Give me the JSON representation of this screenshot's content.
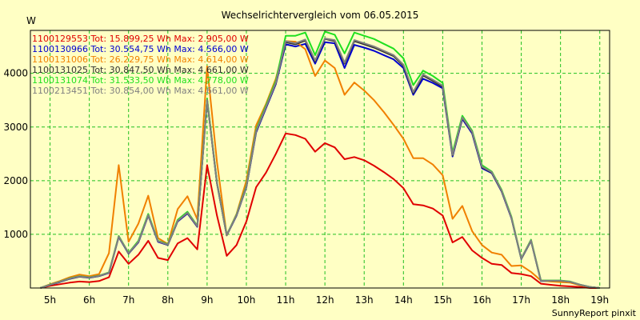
{
  "chart_data": {
    "type": "line",
    "title": "Wechselrichtervergleich vom 06.05.2015",
    "ylabel": "W",
    "xlabel": "",
    "credit": "SunnyReport pinxit",
    "x_ticks": [
      "5h",
      "6h",
      "7h",
      "8h",
      "9h",
      "10h",
      "11h",
      "12h",
      "13h",
      "14h",
      "15h",
      "16h",
      "17h",
      "18h",
      "19h"
    ],
    "y_ticks": [
      1000,
      2000,
      3000,
      4000
    ],
    "xlim": [
      4.5,
      19.25
    ],
    "ylim": [
      0,
      4800
    ],
    "grid": true,
    "series": [
      {
        "name": "1100129553",
        "legend": "1100129553 Tot: 15.899,25 Wh Max: 2.905,00 W",
        "color": "#e00000",
        "x": [
          4.75,
          5,
          5.25,
          5.5,
          5.75,
          6,
          6.25,
          6.5,
          6.75,
          7,
          7.25,
          7.5,
          7.75,
          8,
          8.25,
          8.5,
          8.75,
          9,
          9.25,
          9.5,
          9.75,
          10,
          10.25,
          10.5,
          10.75,
          11,
          11.25,
          11.5,
          11.75,
          12,
          12.25,
          12.5,
          12.75,
          13,
          13.25,
          13.5,
          13.75,
          14,
          14.25,
          14.5,
          14.75,
          15,
          15.25,
          15.5,
          15.75,
          16,
          16.25,
          16.5,
          16.75,
          17,
          17.25,
          17.5,
          17.75,
          18,
          18.25,
          18.5,
          18.75,
          19
        ],
        "y": [
          0,
          40,
          70,
          100,
          120,
          110,
          130,
          200,
          680,
          450,
          620,
          880,
          560,
          520,
          830,
          930,
          720,
          2290,
          1350,
          600,
          800,
          1240,
          1880,
          2150,
          2500,
          2880,
          2850,
          2780,
          2540,
          2700,
          2620,
          2400,
          2440,
          2380,
          2280,
          2160,
          2030,
          1860,
          1560,
          1540,
          1480,
          1350,
          850,
          950,
          700,
          560,
          450,
          430,
          280,
          260,
          220,
          80,
          60,
          40,
          30,
          20,
          0,
          0
        ]
      },
      {
        "name": "1100130966",
        "legend": "1100130966 Tot: 30.554,75 Wh Max: 4.566,00 W",
        "color": "#0000d0",
        "x": [
          4.75,
          5,
          5.25,
          5.5,
          5.75,
          6,
          6.25,
          6.5,
          6.75,
          7,
          7.25,
          7.5,
          7.75,
          8,
          8.25,
          8.5,
          8.75,
          9,
          9.25,
          9.5,
          9.75,
          10,
          10.25,
          10.5,
          10.75,
          11,
          11.25,
          11.5,
          11.75,
          12,
          12.25,
          12.5,
          12.75,
          13,
          13.25,
          13.5,
          13.75,
          14,
          14.25,
          14.5,
          14.75,
          15,
          15.25,
          15.5,
          15.75,
          16,
          16.25,
          16.5,
          16.75,
          17,
          17.25,
          17.5,
          17.75,
          18,
          18.25,
          18.5,
          18.75,
          19
        ],
        "y": [
          0,
          60,
          110,
          170,
          210,
          190,
          220,
          280,
          950,
          640,
          850,
          1350,
          860,
          800,
          1240,
          1390,
          1140,
          3500,
          1950,
          980,
          1350,
          1880,
          2900,
          3350,
          3800,
          4540,
          4500,
          4550,
          4180,
          4580,
          4560,
          4100,
          4530,
          4480,
          4420,
          4340,
          4260,
          4100,
          3600,
          3900,
          3820,
          3720,
          2450,
          3150,
          2880,
          2230,
          2140,
          1800,
          1300,
          540,
          880,
          130,
          130,
          130,
          110,
          60,
          20,
          0
        ]
      },
      {
        "name": "1100131006",
        "legend": "1100131006 Tot: 26.229,75 Wh Max: 4.614,00 W",
        "color": "#f08000",
        "x": [
          4.75,
          5,
          5.25,
          5.5,
          5.75,
          6,
          6.25,
          6.5,
          6.75,
          7,
          7.25,
          7.5,
          7.75,
          8,
          8.25,
          8.5,
          8.75,
          9,
          9.25,
          9.5,
          9.75,
          10,
          10.25,
          10.5,
          10.75,
          11,
          11.25,
          11.5,
          11.75,
          12,
          12.25,
          12.5,
          12.75,
          13,
          13.25,
          13.5,
          13.75,
          14,
          14.25,
          14.5,
          14.75,
          15,
          15.25,
          15.5,
          15.75,
          16,
          16.25,
          16.5,
          16.75,
          17,
          17.25,
          17.5,
          17.75,
          18,
          18.25,
          18.5,
          18.75,
          19
        ],
        "y": [
          0,
          70,
          130,
          200,
          250,
          220,
          260,
          650,
          2290,
          860,
          1200,
          1720,
          930,
          820,
          1470,
          1710,
          1280,
          4130,
          2350,
          980,
          1380,
          2000,
          3030,
          3430,
          3900,
          4600,
          4590,
          4450,
          3950,
          4240,
          4100,
          3600,
          3830,
          3680,
          3500,
          3280,
          3040,
          2780,
          2420,
          2420,
          2300,
          2100,
          1290,
          1530,
          1060,
          800,
          660,
          620,
          410,
          420,
          300,
          140,
          120,
          110,
          100,
          50,
          20,
          0
        ]
      },
      {
        "name": "1100131025",
        "legend": "1100131025 Tot: 30.847,50 Wh Max: 4.661,00 W",
        "color": "#303030",
        "x": [
          4.75,
          5,
          5.25,
          5.5,
          5.75,
          6,
          6.25,
          6.5,
          6.75,
          7,
          7.25,
          7.5,
          7.75,
          8,
          8.25,
          8.5,
          8.75,
          9,
          9.25,
          9.5,
          9.75,
          10,
          10.25,
          10.5,
          10.75,
          11,
          11.25,
          11.5,
          11.75,
          12,
          12.25,
          12.5,
          12.75,
          13,
          13.25,
          13.5,
          13.75,
          14,
          14.25,
          14.5,
          14.75,
          15,
          15.25,
          15.5,
          15.75,
          16,
          16.25,
          16.5,
          16.75,
          17,
          17.25,
          17.5,
          17.75,
          18,
          18.25,
          18.5,
          18.75,
          19
        ],
        "y": [
          0,
          60,
          115,
          175,
          215,
          195,
          225,
          285,
          960,
          645,
          860,
          1360,
          870,
          805,
          1250,
          1400,
          1150,
          3510,
          1960,
          985,
          1360,
          1890,
          2920,
          3370,
          3820,
          4580,
          4540,
          4610,
          4220,
          4640,
          4600,
          4180,
          4600,
          4540,
          4480,
          4400,
          4320,
          4140,
          3630,
          3960,
          3860,
          3750,
          2470,
          3170,
          2900,
          2250,
          2150,
          1810,
          1310,
          545,
          885,
          135,
          135,
          135,
          115,
          60,
          20,
          0
        ]
      },
      {
        "name": "1100131074",
        "legend": "1100131074 Tot: 31.533,50 Wh Max: 4.778,00 W",
        "color": "#20e020",
        "x": [
          4.75,
          5,
          5.25,
          5.5,
          5.75,
          6,
          6.25,
          6.5,
          6.75,
          7,
          7.25,
          7.5,
          7.75,
          8,
          8.25,
          8.5,
          8.75,
          9,
          9.25,
          9.5,
          9.75,
          10,
          10.25,
          10.5,
          10.75,
          11,
          11.25,
          11.5,
          11.75,
          12,
          12.25,
          12.5,
          12.75,
          13,
          13.25,
          13.5,
          13.75,
          14,
          14.25,
          14.5,
          14.75,
          15,
          15.25,
          15.5,
          15.75,
          16,
          16.25,
          16.5,
          16.75,
          17,
          17.25,
          17.5,
          17.75,
          18,
          18.25,
          18.5,
          18.75,
          19
        ],
        "y": [
          0,
          62,
          118,
          180,
          220,
          200,
          230,
          290,
          970,
          655,
          880,
          1380,
          880,
          815,
          1270,
          1420,
          1160,
          3530,
          1970,
          990,
          1370,
          1910,
          2950,
          3400,
          3860,
          4700,
          4700,
          4760,
          4340,
          4778,
          4720,
          4370,
          4760,
          4700,
          4640,
          4550,
          4460,
          4280,
          3780,
          4050,
          3950,
          3820,
          2520,
          3210,
          2930,
          2290,
          2170,
          1830,
          1330,
          550,
          900,
          140,
          140,
          140,
          120,
          60,
          20,
          0
        ]
      },
      {
        "name": "1100213451",
        "legend": "1100213451 Tot: 30.854,00 Wh Max: 4.661,00 W",
        "color": "#808080",
        "x": [
          4.75,
          5,
          5.25,
          5.5,
          5.75,
          6,
          6.25,
          6.5,
          6.75,
          7,
          7.25,
          7.5,
          7.75,
          8,
          8.25,
          8.5,
          8.75,
          9,
          9.25,
          9.5,
          9.75,
          10,
          10.25,
          10.5,
          10.75,
          11,
          11.25,
          11.5,
          11.75,
          12,
          12.25,
          12.5,
          12.75,
          13,
          13.25,
          13.5,
          13.75,
          14,
          14.25,
          14.5,
          14.75,
          15,
          15.25,
          15.5,
          15.75,
          16,
          16.25,
          16.5,
          16.75,
          17,
          17.25,
          17.5,
          17.75,
          18,
          18.25,
          18.5,
          18.75,
          19
        ],
        "y": [
          0,
          61,
          116,
          176,
          216,
          196,
          226,
          286,
          962,
          648,
          862,
          1362,
          872,
          808,
          1252,
          1402,
          1152,
          3505,
          1962,
          987,
          1362,
          1892,
          2925,
          3375,
          3825,
          4600,
          4560,
          4630,
          4240,
          4650,
          4620,
          4200,
          4620,
          4560,
          4500,
          4420,
          4340,
          4160,
          3650,
          3980,
          3880,
          3770,
          2480,
          3180,
          2910,
          2260,
          2160,
          1815,
          1315,
          548,
          888,
          136,
          136,
          136,
          116,
          60,
          20,
          0
        ]
      }
    ]
  }
}
